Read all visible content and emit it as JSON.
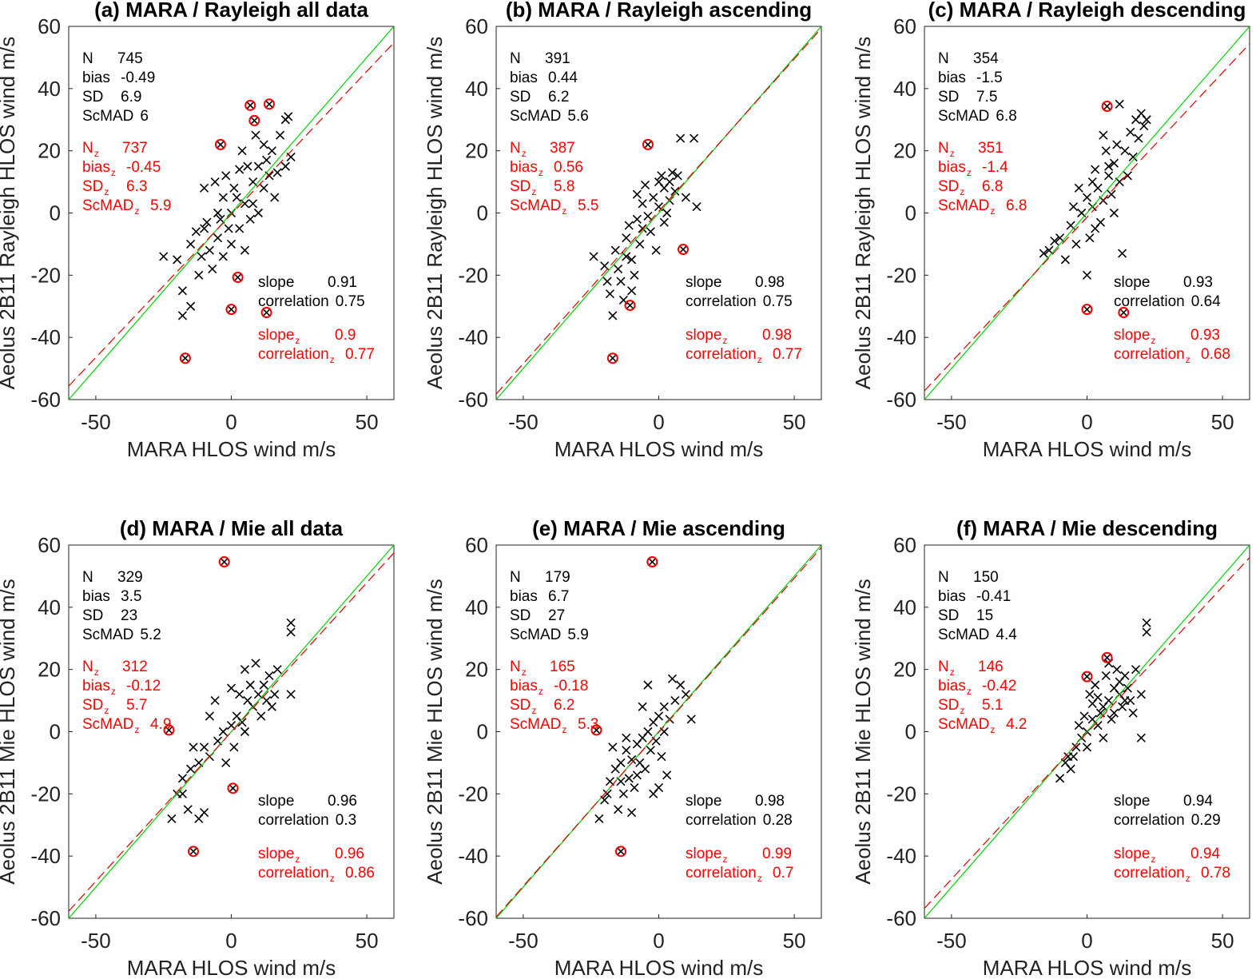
{
  "chart_data": [
    {
      "type": "scatter",
      "title": "(a) MARA / Rayleigh all data",
      "xlabel": "MARA HLOS wind m/s",
      "ylabel": "Aeolus 2B11 Rayleigh HLOS wind m/s",
      "xlim": [
        -60,
        60
      ],
      "ylim": [
        -60,
        60
      ],
      "xticks": [
        "-50",
        "0",
        "50"
      ],
      "yticks": [
        "60",
        "40",
        "20",
        "0",
        "-20",
        "-40",
        "-60"
      ],
      "stats": {
        "N": "745",
        "bias": "-0.49",
        "SD": "6.9",
        "ScMAD": "6",
        "Nz": "737",
        "biasz": "-0.45",
        "SDz": "6.3",
        "ScMADz": "5.9",
        "slope": "0.91",
        "correlation": "0.75",
        "slopez": "0.9",
        "correlationz": "0.77"
      },
      "fit": {
        "slope": 0.92,
        "intercept": -0.45
      },
      "points": [
        [
          -20,
          -15
        ],
        [
          -15,
          -10
        ],
        [
          -10,
          -5
        ],
        [
          -8,
          -12
        ],
        [
          -5,
          0
        ],
        [
          -3,
          5
        ],
        [
          0,
          0
        ],
        [
          2,
          5
        ],
        [
          5,
          3
        ],
        [
          8,
          10
        ],
        [
          10,
          15
        ],
        [
          12,
          8
        ],
        [
          15,
          20
        ],
        [
          18,
          25
        ],
        [
          20,
          30
        ],
        [
          -12,
          -20
        ],
        [
          -18,
          -25
        ],
        [
          -5,
          -8
        ],
        [
          3,
          -5
        ],
        [
          6,
          15
        ],
        [
          -2,
          12
        ],
        [
          10,
          0
        ],
        [
          14,
          12
        ],
        [
          -10,
          8
        ],
        [
          0,
          -10
        ],
        [
          4,
          20
        ],
        [
          -7,
          -18
        ],
        [
          16,
          5
        ],
        [
          22,
          18
        ],
        [
          -25,
          -14
        ],
        [
          -15,
          -30
        ],
        [
          -18,
          -33
        ],
        [
          9,
          25
        ],
        [
          -4,
          -2
        ],
        [
          1,
          8
        ],
        [
          7,
          -2
        ],
        [
          -9,
          -3
        ],
        [
          12,
          22
        ],
        [
          20,
          15
        ],
        [
          -13,
          -6
        ],
        [
          -6,
          10
        ],
        [
          3,
          14
        ],
        [
          -1,
          -5
        ],
        [
          5,
          -12
        ],
        [
          -11,
          -14
        ],
        [
          17,
          13
        ],
        [
          21,
          31
        ],
        [
          -3,
          -14
        ],
        [
          8,
          3
        ],
        [
          13,
          17
        ]
      ],
      "outliers": [
        [
          7,
          34.6
        ],
        [
          14,
          35
        ],
        [
          8.5,
          29.7
        ],
        [
          -4,
          22
        ],
        [
          2.4,
          -20.7
        ],
        [
          0,
          -31
        ],
        [
          13,
          -32
        ],
        [
          -17,
          -46.7
        ]
      ]
    },
    {
      "type": "scatter",
      "title": "(b) MARA / Rayleigh ascending",
      "xlabel": "MARA HLOS wind m/s",
      "ylabel": "Aeolus 2B11 Rayleigh HLOS wind m/s",
      "xlim": [
        -60,
        60
      ],
      "ylim": [
        -60,
        60
      ],
      "xticks": [
        "-50",
        "0",
        "50"
      ],
      "yticks": [
        "60",
        "40",
        "20",
        "0",
        "-20",
        "-40",
        "-60"
      ],
      "stats": {
        "N": "391",
        "bias": "0.44",
        "SD": "6.2",
        "ScMAD": "5.6",
        "Nz": "387",
        "biasz": "0.56",
        "SDz": "5.8",
        "ScMADz": "5.5",
        "slope": "0.98",
        "correlation": "0.75",
        "slopez": "0.98",
        "correlationz": "0.77"
      },
      "fit": {
        "slope": 0.98,
        "intercept": 0.56
      },
      "points": [
        [
          -20,
          -17
        ],
        [
          -16,
          -12
        ],
        [
          -12,
          -8
        ],
        [
          -10,
          -15
        ],
        [
          -8,
          -2
        ],
        [
          -6,
          3
        ],
        [
          -4,
          -1
        ],
        [
          -2,
          5
        ],
        [
          0,
          2
        ],
        [
          2,
          8
        ],
        [
          4,
          10
        ],
        [
          -14,
          -22
        ],
        [
          -18,
          -26
        ],
        [
          -7,
          -10
        ],
        [
          -3,
          -6
        ],
        [
          1,
          12
        ],
        [
          -5,
          9
        ],
        [
          3,
          0
        ],
        [
          5,
          13
        ],
        [
          -11,
          -4
        ],
        [
          -9,
          -20
        ],
        [
          -13,
          -28
        ],
        [
          -17,
          -33
        ],
        [
          -24,
          -14
        ],
        [
          8,
          24
        ],
        [
          13,
          24
        ],
        [
          14,
          2
        ],
        [
          10,
          5
        ],
        [
          -1,
          -12
        ],
        [
          -15,
          -18
        ],
        [
          -6,
          -5
        ],
        [
          0,
          10
        ],
        [
          6,
          7
        ],
        [
          -10,
          -25
        ],
        [
          -19,
          -22
        ],
        [
          2,
          -3
        ],
        [
          -8,
          6
        ],
        [
          4,
          4
        ],
        [
          -12,
          -14
        ],
        [
          7,
          12
        ]
      ],
      "outliers": [
        [
          -4,
          22
        ],
        [
          9,
          -11.7
        ],
        [
          -10.6,
          -29.7
        ],
        [
          -17,
          -46.7
        ]
      ]
    },
    {
      "type": "scatter",
      "title": "(c) MARA / Rayleigh descending",
      "xlabel": "MARA HLOS wind m/s",
      "ylabel": "Aeolus 2B11 Rayleigh HLOS wind m/s",
      "xlim": [
        -60,
        60
      ],
      "ylim": [
        -60,
        60
      ],
      "xticks": [
        "-50",
        "0",
        "50"
      ],
      "yticks": [
        "60",
        "40",
        "20",
        "0",
        "-20",
        "-40",
        "-60"
      ],
      "stats": {
        "N": "354",
        "bias": "-1.5",
        "SD": "7.5",
        "ScMAD": "6.8",
        "Nz": "351",
        "biasz": "-1.4",
        "SDz": "6.8",
        "ScMADz": "6.8",
        "slope": "0.93",
        "correlation": "0.64",
        "slopez": "0.93",
        "correlationz": "0.68"
      },
      "fit": {
        "slope": 0.93,
        "intercept": -1.4
      },
      "points": [
        [
          -14,
          -12
        ],
        [
          -10,
          -8
        ],
        [
          -6,
          -4
        ],
        [
          -4,
          -10
        ],
        [
          -2,
          0
        ],
        [
          0,
          5
        ],
        [
          2,
          2
        ],
        [
          4,
          8
        ],
        [
          6,
          4
        ],
        [
          8,
          12
        ],
        [
          10,
          16
        ],
        [
          12,
          10
        ],
        [
          14,
          20
        ],
        [
          16,
          26
        ],
        [
          18,
          30
        ],
        [
          20,
          32
        ],
        [
          -8,
          -15
        ],
        [
          -5,
          2
        ],
        [
          1,
          -8
        ],
        [
          3,
          14
        ],
        [
          5,
          -3
        ],
        [
          7,
          20
        ],
        [
          9,
          6
        ],
        [
          11,
          22
        ],
        [
          13,
          -13
        ],
        [
          15,
          12
        ],
        [
          17,
          18
        ],
        [
          19,
          24
        ],
        [
          21,
          28
        ],
        [
          -12,
          -9
        ],
        [
          0,
          -20
        ],
        [
          3,
          -5
        ],
        [
          6,
          25
        ],
        [
          10,
          0
        ],
        [
          -3,
          8
        ],
        [
          12,
          35
        ],
        [
          22,
          30
        ],
        [
          -16,
          -13
        ],
        [
          2,
          10
        ],
        [
          8,
          15
        ]
      ],
      "outliers": [
        [
          7.4,
          34.3
        ],
        [
          0,
          -31
        ],
        [
          13.5,
          -32
        ]
      ]
    },
    {
      "type": "scatter",
      "title": "(d) MARA / Mie all data",
      "xlabel": "MARA HLOS wind m/s",
      "ylabel": "Aeolus 2B11 Mie HLOS wind m/s",
      "xlim": [
        -60,
        60
      ],
      "ylim": [
        -60,
        60
      ],
      "xticks": [
        "-50",
        "0",
        "50"
      ],
      "yticks": [
        "60",
        "40",
        "20",
        "0",
        "-20",
        "-40",
        "-60"
      ],
      "stats": {
        "N": "329",
        "bias": "3.5",
        "SD": "23",
        "ScMAD": "5.2",
        "Nz": "312",
        "biasz": "-0.12",
        "SDz": "5.7",
        "ScMADz": "4.9",
        "slope": "0.96",
        "correlation": "0.3",
        "slopez": "0.96",
        "correlationz": "0.86"
      },
      "fit": {
        "slope": 0.96,
        "intercept": -0.12
      },
      "points": [
        [
          -22,
          -28
        ],
        [
          -20,
          -20
        ],
        [
          -18,
          -15
        ],
        [
          -15,
          -12
        ],
        [
          -12,
          -10
        ],
        [
          -10,
          -5
        ],
        [
          -8,
          -8
        ],
        [
          -5,
          -3
        ],
        [
          -3,
          0
        ],
        [
          0,
          2
        ],
        [
          2,
          5
        ],
        [
          4,
          3
        ],
        [
          6,
          10
        ],
        [
          8,
          8
        ],
        [
          10,
          12
        ],
        [
          12,
          15
        ],
        [
          14,
          18
        ],
        [
          16,
          12
        ],
        [
          -16,
          -25
        ],
        [
          -14,
          -5
        ],
        [
          -6,
          10
        ],
        [
          -2,
          -10
        ],
        [
          1,
          -5
        ],
        [
          3,
          12
        ],
        [
          5,
          0
        ],
        [
          7,
          15
        ],
        [
          9,
          22
        ],
        [
          11,
          5
        ],
        [
          13,
          10
        ],
        [
          15,
          8
        ],
        [
          17,
          20
        ],
        [
          22,
          35
        ],
        [
          22,
          32
        ],
        [
          22,
          12
        ],
        [
          -8,
          5
        ],
        [
          -18,
          -20
        ],
        [
          -12,
          -28
        ],
        [
          -10,
          -26
        ],
        [
          0,
          14
        ],
        [
          5,
          20
        ]
      ],
      "outliers": [
        [
          -2.6,
          54.6
        ],
        [
          -23,
          0.5
        ],
        [
          0.6,
          -18.2
        ],
        [
          -14,
          -38.5
        ]
      ]
    },
    {
      "type": "scatter",
      "title": "(e) MARA / Mie ascending",
      "xlabel": "MARA HLOS wind m/s",
      "ylabel": "Aeolus 2B11 Mie HLOS wind m/s",
      "xlim": [
        -60,
        60
      ],
      "ylim": [
        -60,
        60
      ],
      "xticks": [
        "-50",
        "0",
        "50"
      ],
      "yticks": [
        "60",
        "40",
        "20",
        "0",
        "-20",
        "-40",
        "-60"
      ],
      "stats": {
        "N": "179",
        "bias": "6.7",
        "SD": "27",
        "ScMAD": "5.9",
        "Nz": "165",
        "biasz": "-0.18",
        "SDz": "6.2",
        "ScMADz": "5.3",
        "slope": "0.98",
        "correlation": "0.28",
        "slopez": "0.99",
        "correlationz": "0.7"
      },
      "fit": {
        "slope": 0.99,
        "intercept": -0.18
      },
      "points": [
        [
          -22,
          -28
        ],
        [
          -20,
          -22
        ],
        [
          -18,
          -16
        ],
        [
          -16,
          -12
        ],
        [
          -14,
          -10
        ],
        [
          -12,
          -6
        ],
        [
          -10,
          -9
        ],
        [
          -8,
          -4
        ],
        [
          -6,
          -2
        ],
        [
          -4,
          0
        ],
        [
          -2,
          3
        ],
        [
          0,
          5
        ],
        [
          2,
          8
        ],
        [
          4,
          4
        ],
        [
          6,
          10
        ],
        [
          8,
          15
        ],
        [
          10,
          12
        ],
        [
          12,
          4
        ],
        [
          -15,
          -25
        ],
        [
          -13,
          -20
        ],
        [
          -11,
          -15
        ],
        [
          -9,
          -18
        ],
        [
          -7,
          -10
        ],
        [
          -5,
          -12
        ],
        [
          -3,
          -6
        ],
        [
          -1,
          -3
        ],
        [
          1,
          -8
        ],
        [
          3,
          -14
        ],
        [
          -17,
          -5
        ],
        [
          -4,
          15
        ],
        [
          0,
          -18
        ],
        [
          -6,
          8
        ],
        [
          -10,
          -26
        ],
        [
          -19,
          -20
        ],
        [
          2,
          0
        ],
        [
          -12,
          -2
        ],
        [
          -8,
          -14
        ],
        [
          5,
          17
        ],
        [
          -2,
          -20
        ],
        [
          -14,
          -16
        ]
      ],
      "outliers": [
        [
          -2.4,
          54.6
        ],
        [
          -23,
          0.5
        ],
        [
          -14,
          -38.5
        ]
      ]
    },
    {
      "type": "scatter",
      "title": "(f) MARA / Mie descending",
      "xlabel": "MARA HLOS wind m/s",
      "ylabel": "Aeolus 2B11 Mie HLOS wind m/s",
      "xlim": [
        -60,
        60
      ],
      "ylim": [
        -60,
        60
      ],
      "xticks": [
        "-50",
        "0",
        "50"
      ],
      "yticks": [
        "60",
        "40",
        "20",
        "0",
        "-20",
        "-40",
        "-60"
      ],
      "stats": {
        "N": "150",
        "bias": "-0.41",
        "SD": "15",
        "ScMAD": "4.4",
        "Nz": "146",
        "biasz": "-0.42",
        "SDz": "5.1",
        "ScMADz": "4.2",
        "slope": "0.94",
        "correlation": "0.29",
        "slopez": "0.94",
        "correlationz": "0.78"
      },
      "fit": {
        "slope": 0.94,
        "intercept": -0.42
      },
      "points": [
        [
          -10,
          -15
        ],
        [
          -8,
          -10
        ],
        [
          -6,
          -12
        ],
        [
          -4,
          -5
        ],
        [
          -2,
          -2
        ],
        [
          0,
          0
        ],
        [
          2,
          4
        ],
        [
          4,
          2
        ],
        [
          6,
          8
        ],
        [
          8,
          10
        ],
        [
          10,
          14
        ],
        [
          12,
          12
        ],
        [
          14,
          18
        ],
        [
          16,
          10
        ],
        [
          18,
          20
        ],
        [
          20,
          12
        ],
        [
          -5,
          -8
        ],
        [
          -1,
          5
        ],
        [
          1,
          12
        ],
        [
          3,
          15
        ],
        [
          5,
          6
        ],
        [
          7,
          18
        ],
        [
          9,
          4
        ],
        [
          11,
          20
        ],
        [
          13,
          8
        ],
        [
          15,
          14
        ],
        [
          17,
          6
        ],
        [
          22,
          35
        ],
        [
          22,
          32
        ],
        [
          20,
          -2
        ],
        [
          -3,
          2
        ],
        [
          0,
          -5
        ],
        [
          4,
          11
        ],
        [
          6,
          -2
        ],
        [
          8,
          22
        ],
        [
          10,
          6
        ],
        [
          12,
          16
        ],
        [
          -7,
          -8
        ],
        [
          2,
          9
        ],
        [
          14,
          10
        ]
      ],
      "outliers": [
        [
          0,
          17.7
        ],
        [
          7.4,
          23.8
        ]
      ]
    }
  ]
}
